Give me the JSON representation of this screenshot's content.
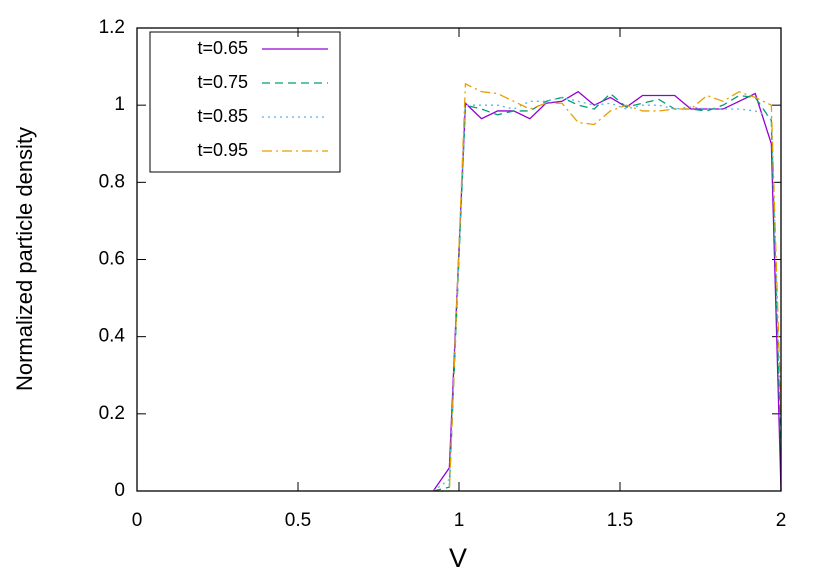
{
  "chart_data": {
    "type": "line",
    "xlabel": "V",
    "ylabel": "Normalized particle density",
    "x": [
      0.92,
      0.97,
      1.02,
      1.07,
      1.12,
      1.17,
      1.22,
      1.27,
      1.32,
      1.37,
      1.42,
      1.47,
      1.52,
      1.57,
      1.62,
      1.67,
      1.72,
      1.77,
      1.82,
      1.87,
      1.92,
      1.97,
      2.0
    ],
    "series": [
      {
        "name": "t=0.65",
        "color": "#9400d3",
        "dash": "solid",
        "values": [
          0,
          0.06,
          1.005,
          0.965,
          0.985,
          0.985,
          0.965,
          1.005,
          1.01,
          1.035,
          1.0,
          1.02,
          0.995,
          1.025,
          1.025,
          1.025,
          0.99,
          0.99,
          0.99,
          1.01,
          1.03,
          0.9,
          0
        ]
      },
      {
        "name": "t=0.75",
        "color": "#009e73",
        "dash": "dashed",
        "values": [
          0,
          0.01,
          1.0,
          0.99,
          0.975,
          0.985,
          0.985,
          1.01,
          1.02,
          1.0,
          0.99,
          1.03,
          0.995,
          1.005,
          1.015,
          0.99,
          0.99,
          0.985,
          1.0,
          1.025,
          1.02,
          0.96,
          0.1
        ]
      },
      {
        "name": "t=0.85",
        "color": "#56b4e9",
        "dash": "dotted",
        "values": [
          0,
          0.03,
          1.0,
          1.0,
          1.0,
          0.99,
          1.01,
          1.01,
          1.02,
          1.01,
          1.0,
          1.005,
          0.99,
          1.0,
          1.0,
          0.99,
          0.995,
          0.99,
          0.99,
          0.99,
          0.985,
          0.97,
          0.15
        ]
      },
      {
        "name": "t=0.95",
        "color": "#e69f00",
        "dash": "dashdot",
        "values": [
          0,
          0.0,
          1.055,
          1.035,
          1.03,
          1.01,
          0.99,
          1.005,
          1.005,
          0.955,
          0.95,
          0.985,
          1.0,
          0.985,
          0.985,
          0.99,
          0.99,
          1.025,
          1.01,
          1.035,
          1.02,
          1.0,
          0.2
        ]
      }
    ],
    "xlim": [
      0,
      2
    ],
    "xticks": [
      0,
      0.5,
      1,
      1.5,
      2
    ],
    "ylim": [
      0,
      1.2
    ],
    "yticks": [
      0,
      0.2,
      0.4,
      0.6,
      0.8,
      1,
      1.2
    ],
    "grid": false,
    "legend": "upper left"
  }
}
